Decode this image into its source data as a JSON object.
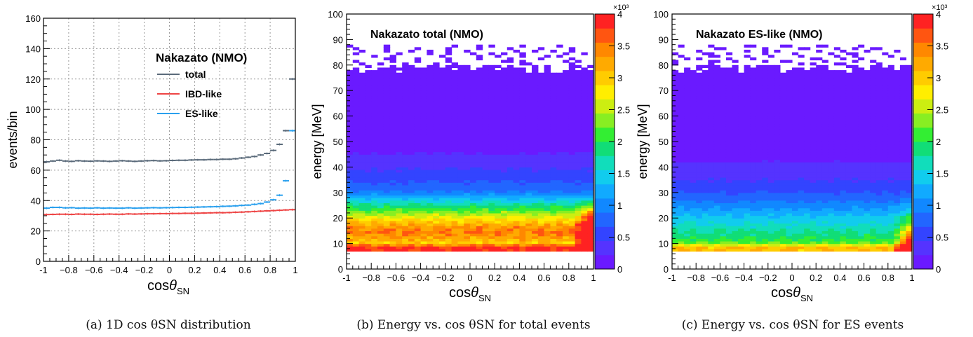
{
  "panels": [
    {
      "caption": "(a) 1D cos θSN distribution",
      "chart_data": {
        "type": "line",
        "title": "",
        "xlabel": "cosθSN",
        "ylabel": "events/bin",
        "xlim": [
          -1,
          1
        ],
        "ylim": [
          0,
          160
        ],
        "xticks": [
          -1,
          -0.8,
          -0.6,
          -0.4,
          -0.2,
          0,
          0.2,
          0.4,
          0.6,
          0.8,
          1
        ],
        "yticks": [
          0,
          20,
          40,
          60,
          80,
          100,
          120,
          140,
          160
        ],
        "grid": true,
        "legend": {
          "title": "Nakazato (NMO)",
          "placement": "top-right"
        },
        "x": [
          -0.975,
          -0.925,
          -0.875,
          -0.825,
          -0.775,
          -0.725,
          -0.675,
          -0.625,
          -0.575,
          -0.525,
          -0.475,
          -0.425,
          -0.375,
          -0.325,
          -0.275,
          -0.225,
          -0.175,
          -0.125,
          -0.075,
          -0.025,
          0.025,
          0.075,
          0.125,
          0.175,
          0.225,
          0.275,
          0.325,
          0.375,
          0.425,
          0.475,
          0.525,
          0.575,
          0.625,
          0.675,
          0.725,
          0.775,
          0.825,
          0.875,
          0.925,
          0.975
        ],
        "series": [
          {
            "name": "total",
            "color": "#5a6a7a",
            "values": [
              65.5,
              66,
              66.5,
              66,
              65.8,
              66.2,
              66,
              65.9,
              66.1,
              66,
              65.8,
              66,
              66.2,
              66,
              65.8,
              66,
              66.2,
              66.3,
              66.1,
              66.2,
              66.4,
              66.5,
              66.5,
              66.7,
              66.8,
              66.8,
              67,
              67,
              67.2,
              67.2,
              67.5,
              68,
              68.5,
              69,
              70,
              71,
              73,
              77,
              86,
              120
            ]
          },
          {
            "name": "IBD-like",
            "color": "#ee4444",
            "values": [
              30.8,
              30.9,
              31,
              31,
              30.9,
              31.1,
              31,
              31,
              30.9,
              31,
              31.1,
              31,
              31,
              31.2,
              31.1,
              31.2,
              31.3,
              31.3,
              31.4,
              31.4,
              31.5,
              31.5,
              31.6,
              31.6,
              31.7,
              31.8,
              31.9,
              32,
              32,
              32.1,
              32.3,
              32.4,
              32.6,
              32.8,
              33,
              33.2,
              33.4,
              33.6,
              33.8,
              34
            ]
          },
          {
            "name": "ES-like",
            "color": "#2aa0ee",
            "values": [
              35,
              35.5,
              35.5,
              35.2,
              35.3,
              35,
              35.1,
              35,
              35.2,
              35,
              35.1,
              35,
              35,
              35.2,
              35,
              35.1,
              35.2,
              35.3,
              35.2,
              35.3,
              35.4,
              35.5,
              35.5,
              35.6,
              35.7,
              35.8,
              35.9,
              36,
              36.2,
              36.3,
              36.5,
              36.8,
              37,
              37.5,
              38,
              39,
              40.5,
              43.5,
              53,
              86
            ]
          }
        ]
      }
    },
    {
      "caption": "(b) Energy vs. cos θSN for total events",
      "chart_data": {
        "type": "heatmap",
        "title": "Nakazato total (NMO)",
        "xlabel": "cosθSN",
        "ylabel": "energy [MeV]",
        "xlim": [
          -1,
          1
        ],
        "ylim": [
          0,
          100
        ],
        "xticks": [
          -1,
          -0.8,
          -0.6,
          -0.4,
          -0.2,
          0,
          0.2,
          0.4,
          0.6,
          0.8,
          1
        ],
        "yticks": [
          0,
          10,
          20,
          30,
          40,
          50,
          60,
          70,
          80,
          90,
          100
        ],
        "zlim": [
          0,
          4000
        ],
        "colorbar_ticks": [
          "0",
          "0.5",
          "1",
          "1.5",
          "2",
          "2.5",
          "3",
          "3.5",
          "4"
        ],
        "colorbar_exponent": "×10³",
        "energy_bins_MeV": [
          8,
          10,
          12,
          14,
          16,
          18,
          20,
          22,
          24,
          26,
          28,
          30,
          32,
          34,
          36,
          38,
          40,
          42,
          44,
          46,
          48,
          50
        ],
        "counts_vs_energy": [
          3900,
          3000,
          3300,
          3500,
          3350,
          3050,
          2700,
          2300,
          1900,
          1550,
          1200,
          900,
          750,
          650,
          550,
          470,
          400,
          330,
          260,
          180,
          110,
          60
        ],
        "forward_excess_from_cos": 0.85,
        "filled_up_to_MeV": 80
      }
    },
    {
      "caption": "(c) Energy vs. cos θSN for ES events",
      "chart_data": {
        "type": "heatmap",
        "title": "Nakazato ES-like (NMO)",
        "xlabel": "cosθSN",
        "ylabel": "energy [MeV]",
        "xlim": [
          -1,
          1
        ],
        "ylim": [
          0,
          100
        ],
        "xticks": [
          -1,
          -0.8,
          -0.6,
          -0.4,
          -0.2,
          0,
          0.2,
          0.4,
          0.6,
          0.8,
          1
        ],
        "yticks": [
          0,
          10,
          20,
          30,
          40,
          50,
          60,
          70,
          80,
          90,
          100
        ],
        "zlim": [
          0,
          4000
        ],
        "colorbar_ticks": [
          "0",
          "0.5",
          "1",
          "1.5",
          "2",
          "2.5",
          "3",
          "3.5",
          "4"
        ],
        "colorbar_exponent": "×10³",
        "energy_bins_MeV": [
          8,
          10,
          12,
          14,
          16,
          18,
          20,
          22,
          24,
          26,
          28,
          30,
          32,
          34,
          36,
          38,
          40,
          42,
          44,
          46,
          48,
          50
        ],
        "counts_vs_energy": [
          3100,
          2200,
          1950,
          1800,
          1650,
          1500,
          1400,
          1200,
          1050,
          900,
          760,
          640,
          540,
          460,
          390,
          330,
          270,
          210,
          150,
          100,
          60,
          30
        ],
        "forward_excess_from_cos": 0.85,
        "filled_up_to_MeV": 80
      }
    }
  ]
}
